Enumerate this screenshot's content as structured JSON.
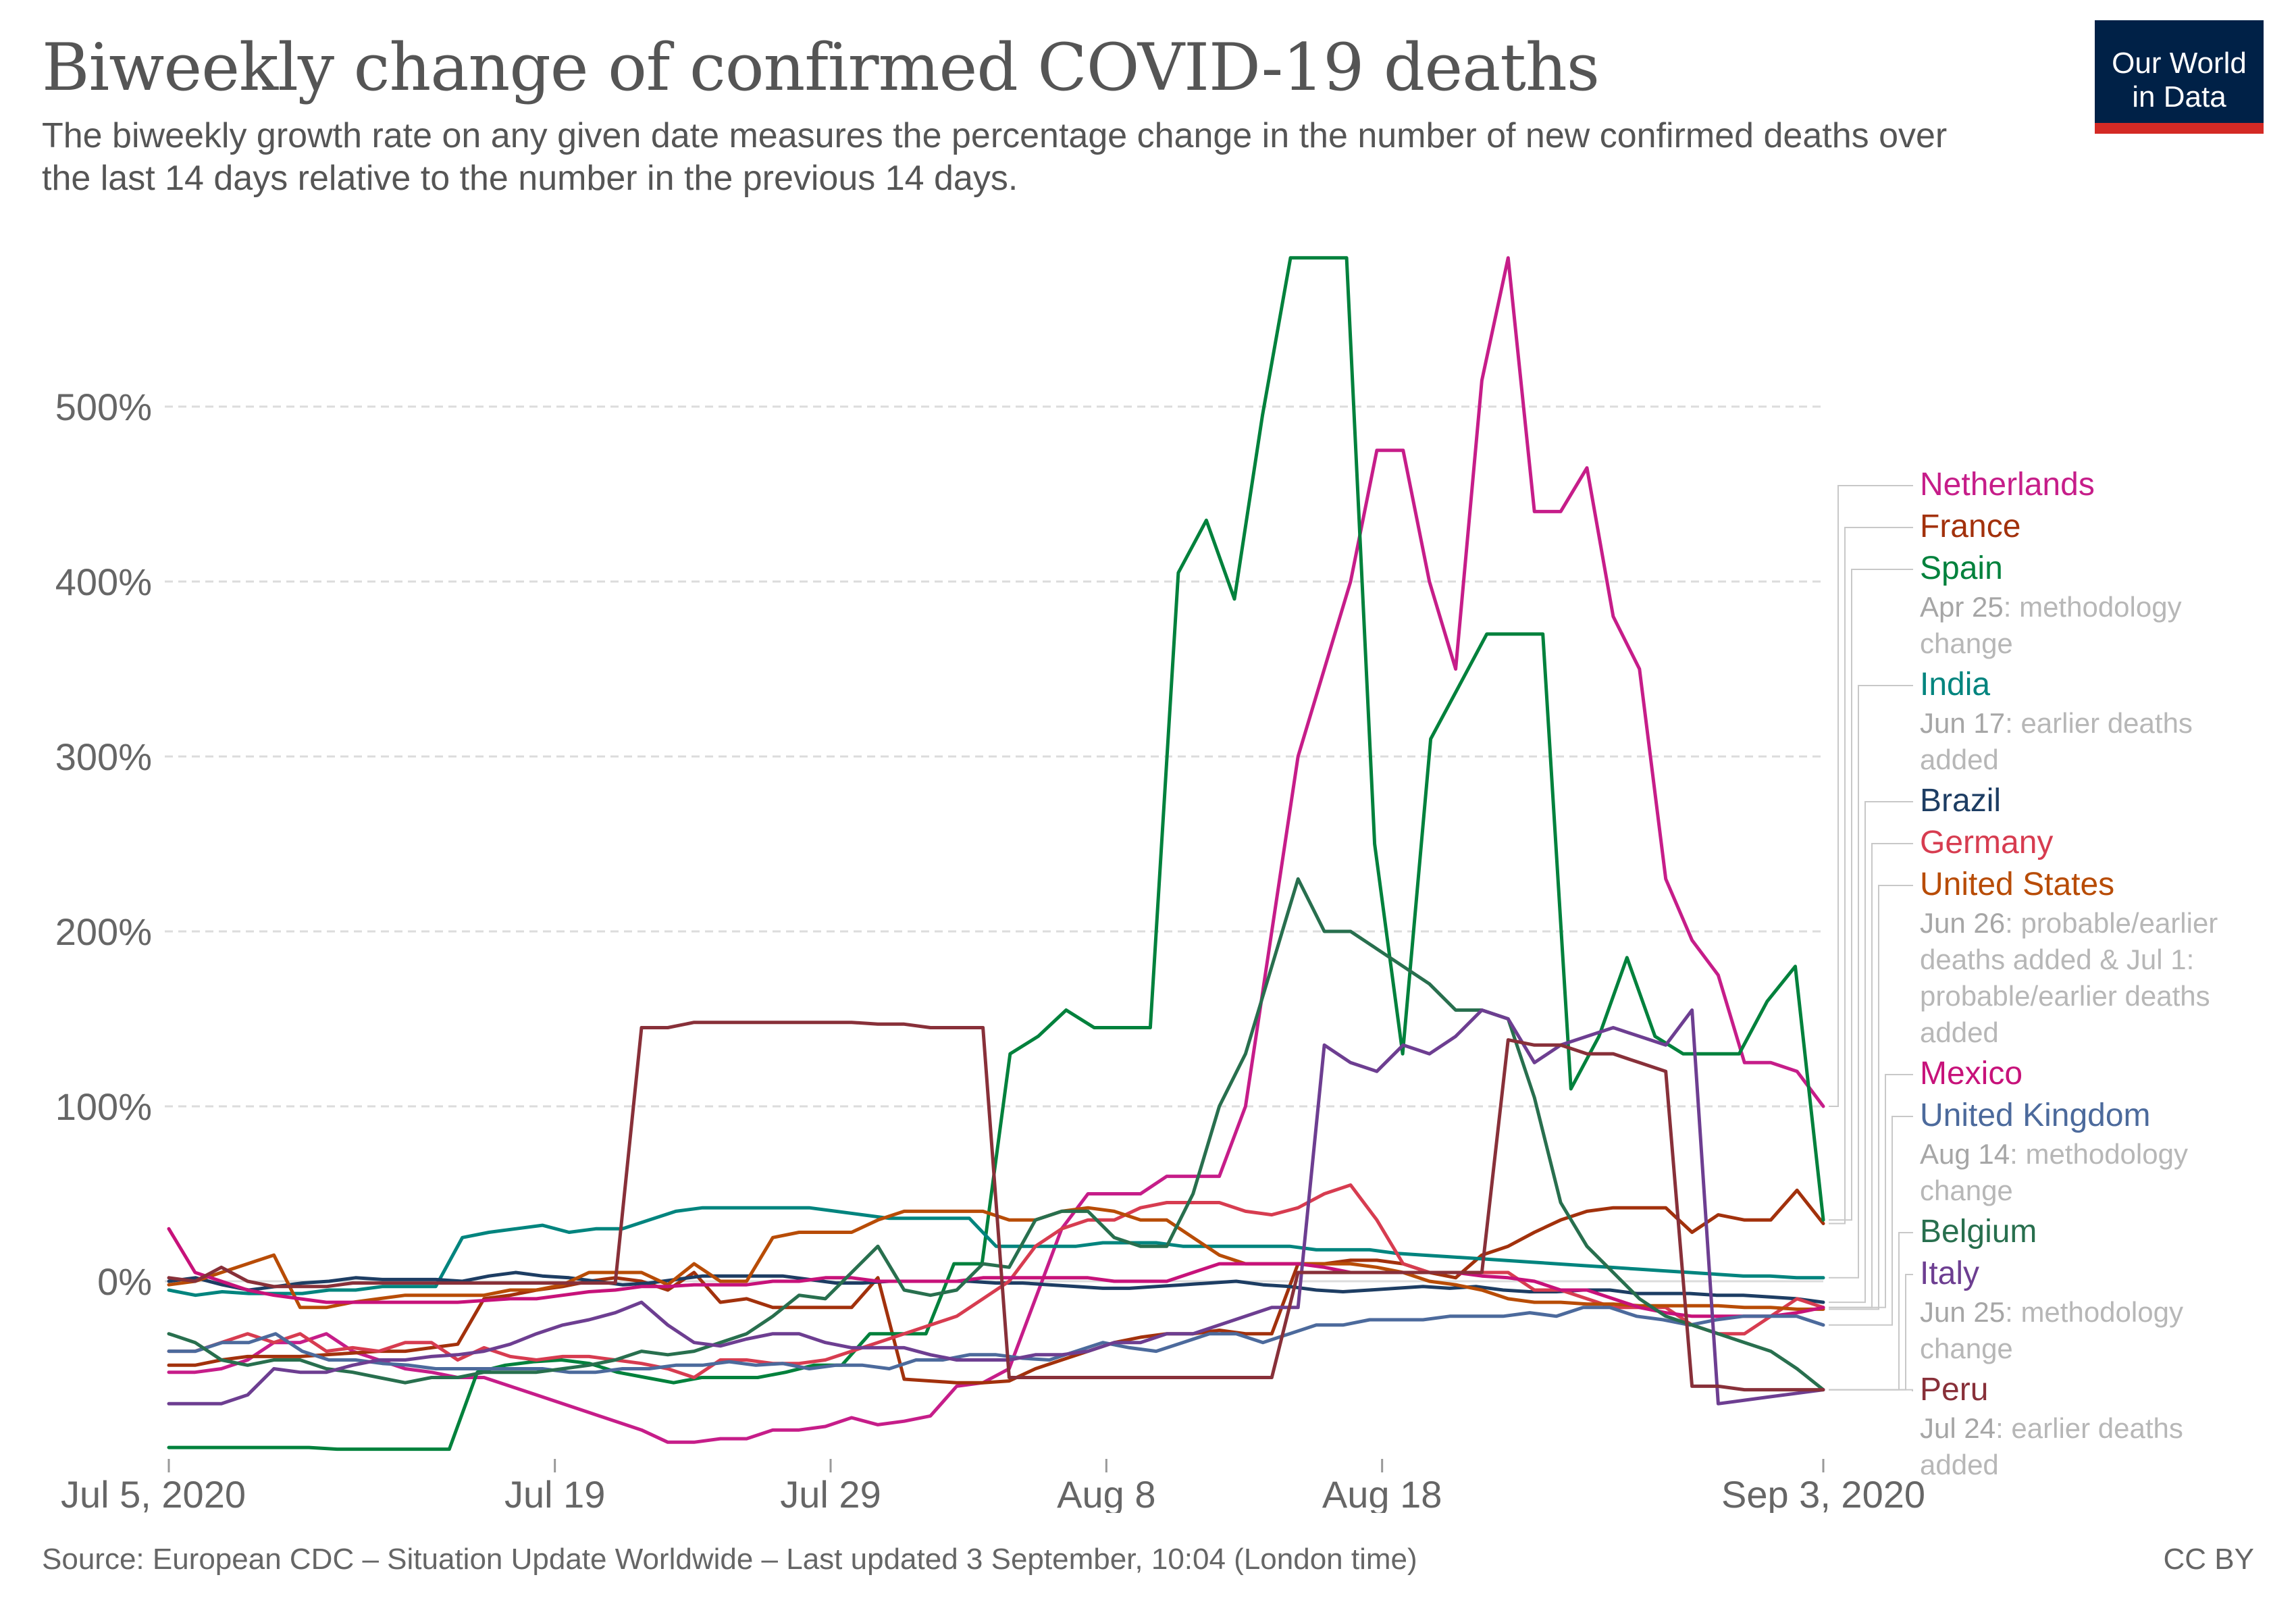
{
  "title": "Biweekly change of confirmed COVID-19 deaths",
  "subtitle": "The biweekly growth rate on any given date measures the percentage change in the number of new confirmed deaths over the last 14 days relative to the number in the previous 14 days.",
  "logo": {
    "line1": "Our World",
    "line2": "in Data"
  },
  "source": "Source: European CDC – Situation Update Worldwide – Last updated 3 September, 10:04 (London time)",
  "license": "CC BY",
  "chart_data": {
    "type": "line",
    "x_start": "Jul 5, 2020",
    "x_end": "Sep 3, 2020",
    "x_ticks": [
      {
        "label": "Jul 5, 2020",
        "date": "2020-07-05"
      },
      {
        "label": "Jul 19",
        "date": "2020-07-19"
      },
      {
        "label": "Jul 29",
        "date": "2020-07-29"
      },
      {
        "label": "Aug 8",
        "date": "2020-08-08"
      },
      {
        "label": "Aug 18",
        "date": "2020-08-18"
      },
      {
        "label": "Sep 3, 2020",
        "date": "2020-09-03"
      }
    ],
    "y_ticks": [
      {
        "value": 500,
        "label": "500%"
      },
      {
        "value": 400,
        "label": "400%"
      },
      {
        "value": 300,
        "label": "300%"
      },
      {
        "value": 200,
        "label": "200%"
      },
      {
        "value": 100,
        "label": "100%"
      },
      {
        "value": 0,
        "label": "0%"
      }
    ],
    "ylim": [
      -95,
      590
    ],
    "grid": "horizontal dashed",
    "legend": "right, labels at line ends",
    "series": [
      {
        "name": "Netherlands",
        "color": "#c61d89",
        "values": [
          -52,
          -52,
          -50,
          -45,
          -35,
          -35,
          -30,
          -40,
          -45,
          -50,
          -52,
          -55,
          -55,
          -60,
          -65,
          -70,
          -75,
          -80,
          -85,
          -92,
          -92,
          -90,
          -90,
          -85,
          -85,
          -83,
          -78,
          -82,
          -80,
          -77,
          -60,
          -58,
          -50,
          -10,
          30,
          50,
          50,
          50,
          60,
          60,
          60,
          100,
          200,
          300,
          350,
          400,
          475,
          475,
          400,
          350,
          515,
          585,
          440,
          440,
          465,
          380,
          350,
          230,
          195,
          175,
          125,
          125,
          120,
          100
        ]
      },
      {
        "name": "France",
        "color": "#a2310c",
        "values": [
          -48,
          -48,
          -45,
          -43,
          -43,
          -43,
          -42,
          -41,
          -40,
          -40,
          -38,
          -36,
          -10,
          -8,
          -5,
          -3,
          0,
          2,
          0,
          -5,
          5,
          -12,
          -10,
          -15,
          -15,
          -15,
          -15,
          2,
          -56,
          -57,
          -58,
          -58,
          -57,
          -50,
          -45,
          -40,
          -35,
          -32,
          -30,
          -30,
          -28,
          -30,
          -30,
          10,
          10,
          12,
          12,
          10,
          5,
          2,
          15,
          20,
          28,
          35,
          40,
          42,
          42,
          42,
          28,
          38,
          35,
          35,
          52,
          33
        ]
      },
      {
        "name": "Spain",
        "color": "#00813c",
        "values": [
          -95,
          -95,
          -95,
          -95,
          -95,
          -95,
          -96,
          -96,
          -96,
          -96,
          -96,
          -52,
          -48,
          -46,
          -45,
          -47,
          -52,
          -55,
          -58,
          -55,
          -55,
          -55,
          -52,
          -48,
          -48,
          -30,
          -30,
          -30,
          10,
          10,
          130,
          140,
          155,
          145,
          145,
          145,
          405,
          435,
          390,
          495,
          585,
          585,
          585,
          250,
          130,
          310,
          340,
          370,
          370,
          370,
          110,
          140,
          185,
          140,
          130,
          130,
          130,
          160,
          180,
          35
        ]
      },
      {
        "name": "India",
        "color": "#00847e",
        "values": [
          -5,
          -8,
          -6,
          -7,
          -7,
          -7,
          -5,
          -5,
          -3,
          -3,
          -3,
          25,
          28,
          30,
          32,
          28,
          30,
          30,
          35,
          40,
          42,
          42,
          42,
          42,
          42,
          40,
          38,
          36,
          36,
          36,
          36,
          20,
          20,
          20,
          20,
          22,
          22,
          22,
          20,
          20,
          20,
          20,
          20,
          18,
          18,
          18,
          16,
          15,
          14,
          13,
          12,
          11,
          10,
          9,
          8,
          7,
          6,
          5,
          4,
          3,
          3,
          2,
          2
        ]
      },
      {
        "name": "Brazil",
        "color": "#1d3d63",
        "values": [
          0,
          2,
          -2,
          -5,
          -3,
          -1,
          0,
          2,
          1,
          1,
          1,
          0,
          3,
          5,
          3,
          2,
          0,
          -2,
          -1,
          1,
          3,
          3,
          3,
          3,
          1,
          -1,
          -1,
          0,
          0,
          0,
          0,
          -1,
          -1,
          -2,
          -3,
          -4,
          -4,
          -3,
          -2,
          -1,
          0,
          -2,
          -3,
          -5,
          -6,
          -5,
          -4,
          -3,
          -4,
          -3,
          -5,
          -6,
          -6,
          -5,
          -5,
          -7,
          -7,
          -7,
          -8,
          -8,
          -9,
          -10,
          -12
        ]
      },
      {
        "name": "Germany",
        "color": "#d73c50",
        "values": [
          -40,
          -40,
          -35,
          -30,
          -35,
          -30,
          -40,
          -38,
          -40,
          -35,
          -35,
          -45,
          -38,
          -43,
          -45,
          -43,
          -43,
          -45,
          -47,
          -50,
          -55,
          -45,
          -45,
          -47,
          -47,
          -45,
          -40,
          -35,
          -30,
          -25,
          -20,
          -10,
          0,
          20,
          30,
          35,
          35,
          42,
          45,
          45,
          45,
          40,
          38,
          42,
          50,
          55,
          35,
          10,
          5,
          5,
          5,
          5,
          -5,
          -5,
          -10,
          -15,
          -15,
          -15,
          -25,
          -30,
          -30,
          -20,
          -10,
          -15
        ]
      },
      {
        "name": "United States",
        "color": "#b84c06",
        "values": [
          -2,
          0,
          5,
          10,
          15,
          -15,
          -15,
          -12,
          -10,
          -8,
          -8,
          -8,
          -8,
          -5,
          -5,
          -2,
          5,
          5,
          5,
          -2,
          10,
          0,
          0,
          25,
          28,
          28,
          28,
          35,
          40,
          40,
          40,
          40,
          35,
          35,
          40,
          42,
          40,
          35,
          35,
          25,
          15,
          10,
          10,
          10,
          10,
          10,
          8,
          5,
          0,
          -2,
          -5,
          -10,
          -12,
          -12,
          -13,
          -13,
          -14,
          -14,
          -14,
          -14,
          -15,
          -15,
          -16,
          -16
        ]
      },
      {
        "name": "Mexico",
        "color": "#c7127a",
        "values": [
          30,
          5,
          0,
          -5,
          -8,
          -10,
          -12,
          -12,
          -12,
          -12,
          -12,
          -12,
          -11,
          -10,
          -10,
          -8,
          -6,
          -5,
          -3,
          -3,
          -2,
          -2,
          -2,
          0,
          0,
          2,
          2,
          0,
          0,
          0,
          0,
          2,
          2,
          2,
          2,
          2,
          0,
          0,
          0,
          5,
          10,
          10,
          10,
          10,
          8,
          5,
          5,
          5,
          5,
          5,
          3,
          2,
          0,
          -5,
          -5,
          -10,
          -15,
          -18,
          -20,
          -20,
          -20,
          -20,
          -18,
          -15
        ]
      },
      {
        "name": "United Kingdom",
        "color": "#4c6a9c",
        "values": [
          -40,
          -40,
          -35,
          -35,
          -30,
          -40,
          -45,
          -45,
          -47,
          -48,
          -50,
          -50,
          -50,
          -50,
          -50,
          -52,
          -52,
          -50,
          -50,
          -48,
          -48,
          -46,
          -48,
          -47,
          -50,
          -48,
          -48,
          -50,
          -45,
          -45,
          -42,
          -42,
          -44,
          -45,
          -40,
          -35,
          -38,
          -40,
          -35,
          -30,
          -30,
          -35,
          -30,
          -25,
          -25,
          -22,
          -22,
          -22,
          -20,
          -20,
          -20,
          -18,
          -20,
          -15,
          -15,
          -20,
          -22,
          -25,
          -22,
          -20,
          -20,
          -20,
          -25
        ]
      },
      {
        "name": "Belgium",
        "color": "#286f4e",
        "values": [
          -30,
          -35,
          -45,
          -48,
          -45,
          -45,
          -50,
          -52,
          -55,
          -58,
          -55,
          -55,
          -52,
          -52,
          -52,
          -50,
          -48,
          -45,
          -40,
          -42,
          -40,
          -35,
          -30,
          -20,
          -8,
          -10,
          5,
          20,
          -5,
          -8,
          -5,
          10,
          8,
          35,
          40,
          40,
          25,
          20,
          20,
          50,
          100,
          130,
          180,
          230,
          200,
          200,
          190,
          180,
          170,
          155,
          155,
          150,
          105,
          45,
          20,
          5,
          -10,
          -20,
          -25,
          -30,
          -35,
          -40,
          -50,
          -62
        ]
      },
      {
        "name": "Italy",
        "color": "#6d3e91",
        "values": [
          -70,
          -70,
          -70,
          -65,
          -50,
          -52,
          -52,
          -48,
          -45,
          -45,
          -43,
          -42,
          -40,
          -36,
          -30,
          -25,
          -22,
          -18,
          -12,
          -25,
          -35,
          -37,
          -33,
          -30,
          -30,
          -35,
          -38,
          -38,
          -38,
          -42,
          -45,
          -45,
          -45,
          -42,
          -42,
          -40,
          -35,
          -35,
          -30,
          -30,
          -25,
          -20,
          -15,
          -15,
          135,
          125,
          120,
          135,
          130,
          140,
          155,
          150,
          125,
          135,
          140,
          145,
          140,
          135,
          155,
          -70,
          -68,
          -66,
          -64,
          -62
        ]
      },
      {
        "name": "Peru",
        "color": "#883039",
        "values": [
          2,
          0,
          8,
          0,
          -3,
          -3,
          -3,
          -1,
          -1,
          -1,
          -1,
          -1,
          -1,
          -1,
          -1,
          -1,
          -1,
          -1,
          145,
          145,
          148,
          148,
          148,
          148,
          148,
          148,
          148,
          147,
          147,
          145,
          145,
          145,
          -55,
          -55,
          -55,
          -55,
          -55,
          -55,
          -55,
          -55,
          -55,
          -55,
          -55,
          5,
          5,
          5,
          5,
          5,
          5,
          5,
          5,
          138,
          135,
          135,
          130,
          130,
          125,
          120,
          -60,
          -60,
          -62,
          -62,
          -62,
          -62
        ]
      }
    ],
    "annotations": [
      {
        "name": "Spain",
        "date": "Apr 25",
        "text": "methodology change"
      },
      {
        "name": "India",
        "date": "Jun 17",
        "text": "earlier deaths added"
      },
      {
        "name": "United States",
        "date": "Jun 26",
        "text": "probable/earlier deaths added & Jul 1: probable/earlier deaths added"
      },
      {
        "name": "United Kingdom",
        "date": "Aug 14",
        "text": "methodology change"
      },
      {
        "name": "Italy",
        "date": "Jun 25",
        "text": "methodology change"
      },
      {
        "name": "Peru",
        "date": "Jul 24",
        "text": "earlier deaths added"
      }
    ]
  }
}
